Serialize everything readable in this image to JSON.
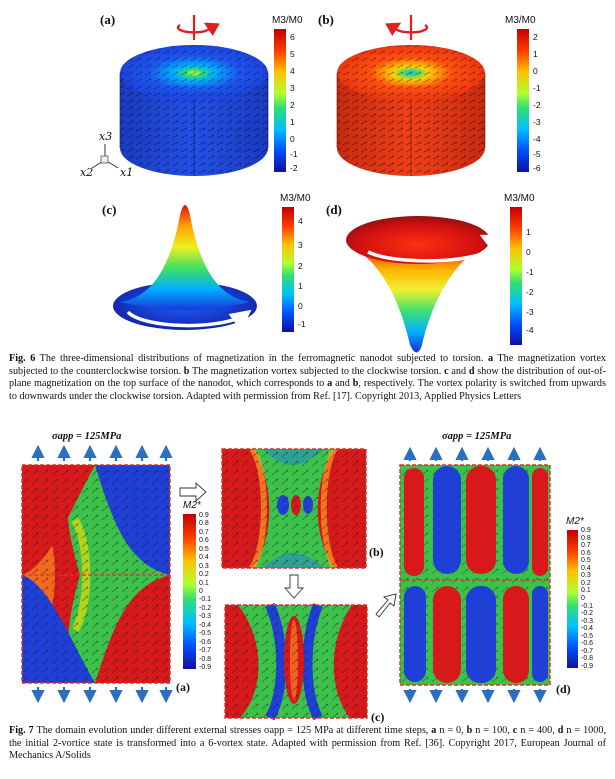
{
  "fig6": {
    "panel_labels": [
      "(a)",
      "(b)",
      "(c)",
      "(d)"
    ],
    "colorbar_title": "M3/M0",
    "colorbar_a_ticks": [
      "6",
      "5",
      "4",
      "3",
      "2",
      "1",
      "0",
      "-1",
      "-2"
    ],
    "colorbar_b_ticks": [
      "2",
      "1",
      "0",
      "-1",
      "-2",
      "-3",
      "-4",
      "-5",
      "-6"
    ],
    "colorbar_c_ticks": [
      "4",
      "3",
      "2",
      "1",
      "0",
      "-1"
    ],
    "colorbar_d_ticks": [
      "1",
      "0",
      "-1",
      "-2",
      "-3",
      "-4"
    ],
    "axis_labels": [
      "x3",
      "x2",
      "x1"
    ],
    "caption_label": "Fig. 6",
    "caption_1": " The three-dimensional distributions of magnetization in the ferromagnetic nanodot subjected to torsion. ",
    "caption_a": "a",
    "caption_2": " The magnetization vortex subjected to the counterclockwise torsion. ",
    "caption_b": "b",
    "caption_3": " The magnetization vortex subjected to the clockwise torsion. ",
    "caption_c": "c",
    "caption_4": " and ",
    "caption_d": "d",
    "caption_5": " show the distribution of out-of-plane magnetization on the top surface of the nanodot, which corresponds to ",
    "caption_a2": "a",
    "caption_6": " and ",
    "caption_b2": "b",
    "caption_7": ", respectively. The vortex polarity is switched from upwards to downwards under the clockwise torsion. Adapted with permission from Ref. [17]. Copyright 2013, Applied Physics Letters"
  },
  "fig7": {
    "stress_label": "σapp = 125MPa",
    "panel_labels": [
      "(a)",
      "(b)",
      "(c)",
      "(d)"
    ],
    "colorbar_title": "M2*",
    "colorbar_ticks": [
      "0.9",
      "0.8",
      "0.7",
      "0.6",
      "0.5",
      "0.4",
      "0.3",
      "0.2",
      "0.1",
      "0",
      "-0.1",
      "-0.2",
      "-0.3",
      "-0.4",
      "-0.5",
      "-0.6",
      "-0.7",
      "-0.8",
      "-0.9"
    ],
    "caption_label": "Fig. 7",
    "caption_1": " The domain evolution under different external stresses σapp = 125 MPa at different time steps, ",
    "caption_a": "a",
    "caption_2": " n = 0, ",
    "caption_b": "b",
    "caption_3": " n = 100, ",
    "caption_c": "c",
    "caption_4": " n = 400, ",
    "caption_d": "d",
    "caption_5": " n = 1000, the initial 2-vortice state is transformed into a 6-vortex state. Adapted with permission from Ref. [36]. Copyright 2017, European Journal of Mechanics A/Solids"
  },
  "colors": {
    "red": "#d7191c",
    "blue": "#1f3fd6",
    "green": "#3cc24a",
    "dashed_border": "#e0302a",
    "arrow_blue": "#2a6fc2"
  }
}
